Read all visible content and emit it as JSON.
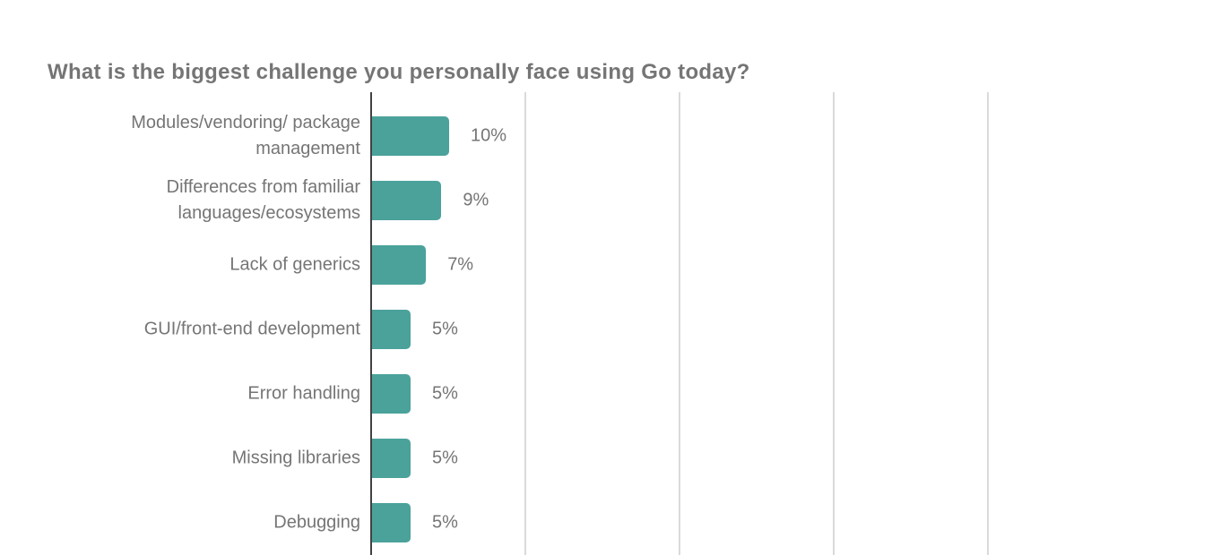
{
  "title": "What is the biggest challenge you personally face using Go today?",
  "colors": {
    "bar": "#4aa29b",
    "gridline": "#dadada",
    "axis": "#424242",
    "text": "#757575",
    "background": "#ffffff"
  },
  "chart_data": {
    "type": "bar",
    "orientation": "horizontal",
    "title": "What is the biggest challenge you personally face using Go today?",
    "categories": [
      "Modules/vendoring/ package management",
      "Differences from familiar languages/ecosystems",
      "Lack of generics",
      "GUI/front-end development",
      "Error handling",
      "Missing libraries",
      "Debugging"
    ],
    "values": [
      10,
      9,
      7,
      5,
      5,
      5,
      5
    ],
    "value_labels": [
      "10%",
      "9%",
      "7%",
      "5%",
      "5%",
      "5%",
      "5%"
    ],
    "unit": "%",
    "xlabel": "",
    "ylabel": "",
    "xlim": [
      0,
      80
    ],
    "gridline_percents": [
      20,
      40,
      60,
      80
    ],
    "grid": true,
    "legend": "none",
    "notes": "bottom of plot area is cropped at image edge"
  }
}
